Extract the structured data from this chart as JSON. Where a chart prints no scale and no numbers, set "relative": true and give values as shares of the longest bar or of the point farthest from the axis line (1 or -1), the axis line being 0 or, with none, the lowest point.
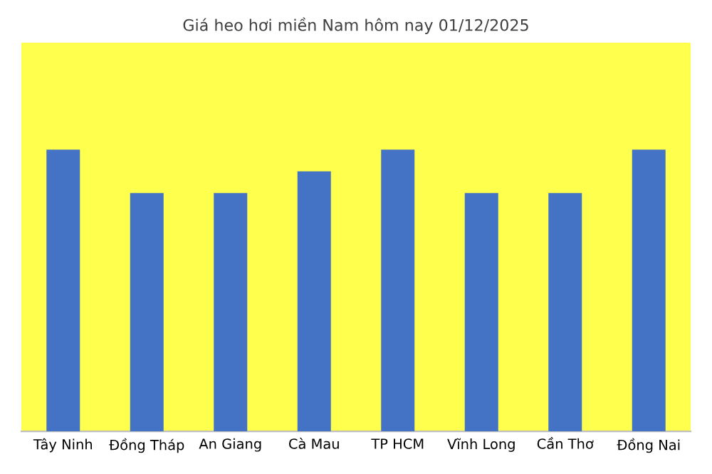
{
  "chart_data": {
    "type": "bar",
    "title": "Giá heo hơi miền Nam hôm nay 01/12/2025",
    "categories": [
      "Tây Ninh",
      "Đồng Tháp",
      "An Giang",
      "Cà Mau",
      "TP HCM",
      "Vĩnh Long",
      "Cần Thơ",
      "Đồng Nai"
    ],
    "values": [
      1,
      0.846,
      0.846,
      0.923,
      1,
      0.846,
      0.846,
      1
    ],
    "color": "#4472c4",
    "relative": true
  }
}
